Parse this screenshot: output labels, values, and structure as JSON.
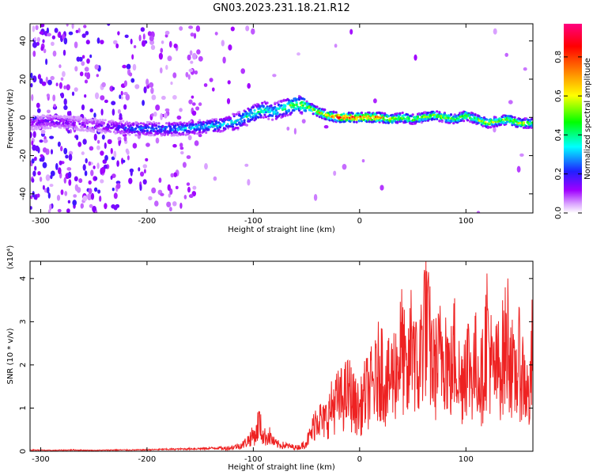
{
  "page": {
    "title": "GN03.2023.231.18.21.R12"
  },
  "chart_data": [
    {
      "type": "heatmap",
      "title": "GN03.2023.231.18.21.R12",
      "xlabel": "Height of straight line (km)",
      "ylabel": "Frequency (Hz)",
      "xlim": [
        -310,
        163
      ],
      "ylim": [
        -50,
        49
      ],
      "x_ticks": [
        -300,
        -200,
        -100,
        0,
        100
      ],
      "x_tick_labels": [
        "-300",
        "-200",
        "-100",
        "0",
        "100"
      ],
      "y_ticks": [
        -40,
        -20,
        0,
        20,
        40
      ],
      "y_tick_labels": [
        "-40",
        "-20",
        "0",
        "20",
        "40"
      ],
      "colorbar": {
        "label": "Normalized spectral amplitude",
        "range": [
          0,
          0.97
        ],
        "ticks": [
          0.0,
          0.2,
          0.4,
          0.6,
          0.8
        ],
        "tick_labels": [
          "0.0",
          "0.2",
          "0.4",
          "0.6",
          "0.8"
        ],
        "colormap": [
          "#ffffff",
          "#a000ff",
          "#0000ff",
          "#00ffff",
          "#00ff00",
          "#ffff00",
          "#ff8000",
          "#ff0000",
          "#ff0080"
        ]
      },
      "ridge": {
        "description_series": "dominant frequency vs height",
        "x": [
          -310,
          -290,
          -270,
          -250,
          -230,
          -210,
          -190,
          -170,
          -150,
          -130,
          -115,
          -100,
          -90,
          -80,
          -70,
          -60,
          -50,
          -40,
          -30,
          -20,
          -10,
          0,
          10,
          20,
          30,
          40,
          50,
          60,
          70,
          80,
          90,
          100,
          110,
          120,
          130,
          140,
          150,
          163
        ],
        "freq": [
          -3,
          -2,
          -3,
          -4,
          -5,
          -6,
          -6,
          -6,
          -5,
          -4,
          -2,
          2,
          4,
          3,
          5,
          7,
          6,
          3,
          1,
          0,
          0,
          0,
          0,
          0,
          -1,
          0,
          -1,
          0,
          1,
          0,
          -1,
          1,
          -1,
          -3,
          -2,
          -1,
          -3,
          -3
        ],
        "amplitude": [
          0.15,
          0.18,
          0.15,
          0.15,
          0.2,
          0.3,
          0.3,
          0.35,
          0.38,
          0.4,
          0.4,
          0.45,
          0.45,
          0.4,
          0.5,
          0.55,
          0.6,
          0.7,
          0.8,
          0.95,
          0.9,
          0.9,
          0.9,
          0.85,
          0.7,
          0.65,
          0.6,
          0.6,
          0.6,
          0.6,
          0.55,
          0.6,
          0.55,
          0.65,
          0.6,
          0.65,
          0.65,
          0.6
        ]
      }
    },
    {
      "type": "line",
      "xlabel": "Height of straight line (km)",
      "ylabel": "SNR (10 * v/v)",
      "y_multiplier": "(x10⁴)",
      "xlim": [
        -310,
        163
      ],
      "ylim": [
        0,
        4.4
      ],
      "x_ticks": [
        -300,
        -200,
        -100,
        0,
        100
      ],
      "x_tick_labels": [
        "-300",
        "-200",
        "-100",
        "0",
        "100"
      ],
      "y_ticks": [
        0,
        1,
        2,
        3,
        4
      ],
      "y_tick_labels": [
        "0",
        "1",
        "2",
        "3",
        "4"
      ],
      "series": [
        {
          "color": "#ee2222",
          "x": [
            -310,
            -290,
            -270,
            -250,
            -230,
            -210,
            -190,
            -170,
            -150,
            -140,
            -130,
            -120,
            -110,
            -105,
            -100,
            -97,
            -95,
            -92,
            -90,
            -85,
            -80,
            -75,
            -70,
            -65,
            -60,
            -55,
            -50,
            -45,
            -40,
            -35,
            -30,
            -25,
            -20,
            -15,
            -10,
            -5,
            0,
            5,
            10,
            15,
            20,
            25,
            30,
            35,
            40,
            45,
            50,
            52,
            55,
            60,
            62,
            65,
            70,
            75,
            80,
            85,
            90,
            95,
            100,
            105,
            110,
            115,
            120,
            125,
            130,
            135,
            140,
            145,
            150,
            155,
            160,
            163
          ],
          "y": [
            0.03,
            0.02,
            0.03,
            0.02,
            0.03,
            0.03,
            0.04,
            0.05,
            0.06,
            0.07,
            0.08,
            0.12,
            0.2,
            0.35,
            0.5,
            0.55,
            1.0,
            0.6,
            0.45,
            0.5,
            0.25,
            0.2,
            0.18,
            0.15,
            0.12,
            0.15,
            0.3,
            0.6,
            1.2,
            0.9,
            1.1,
            1.5,
            1.6,
            1.7,
            1.9,
            1.5,
            1.3,
            1.8,
            2.0,
            2.2,
            2.8,
            2.0,
            2.4,
            2.7,
            3.3,
            2.0,
            4.2,
            3.0,
            2.2,
            4.1,
            4.45,
            3.5,
            2.6,
            2.9,
            3.5,
            2.3,
            3.3,
            2.0,
            3.1,
            2.5,
            2.8,
            2.2,
            3.9,
            2.4,
            2.6,
            3.0,
            3.7,
            2.2,
            2.8,
            2.3,
            1.5,
            3.6
          ]
        }
      ]
    }
  ]
}
